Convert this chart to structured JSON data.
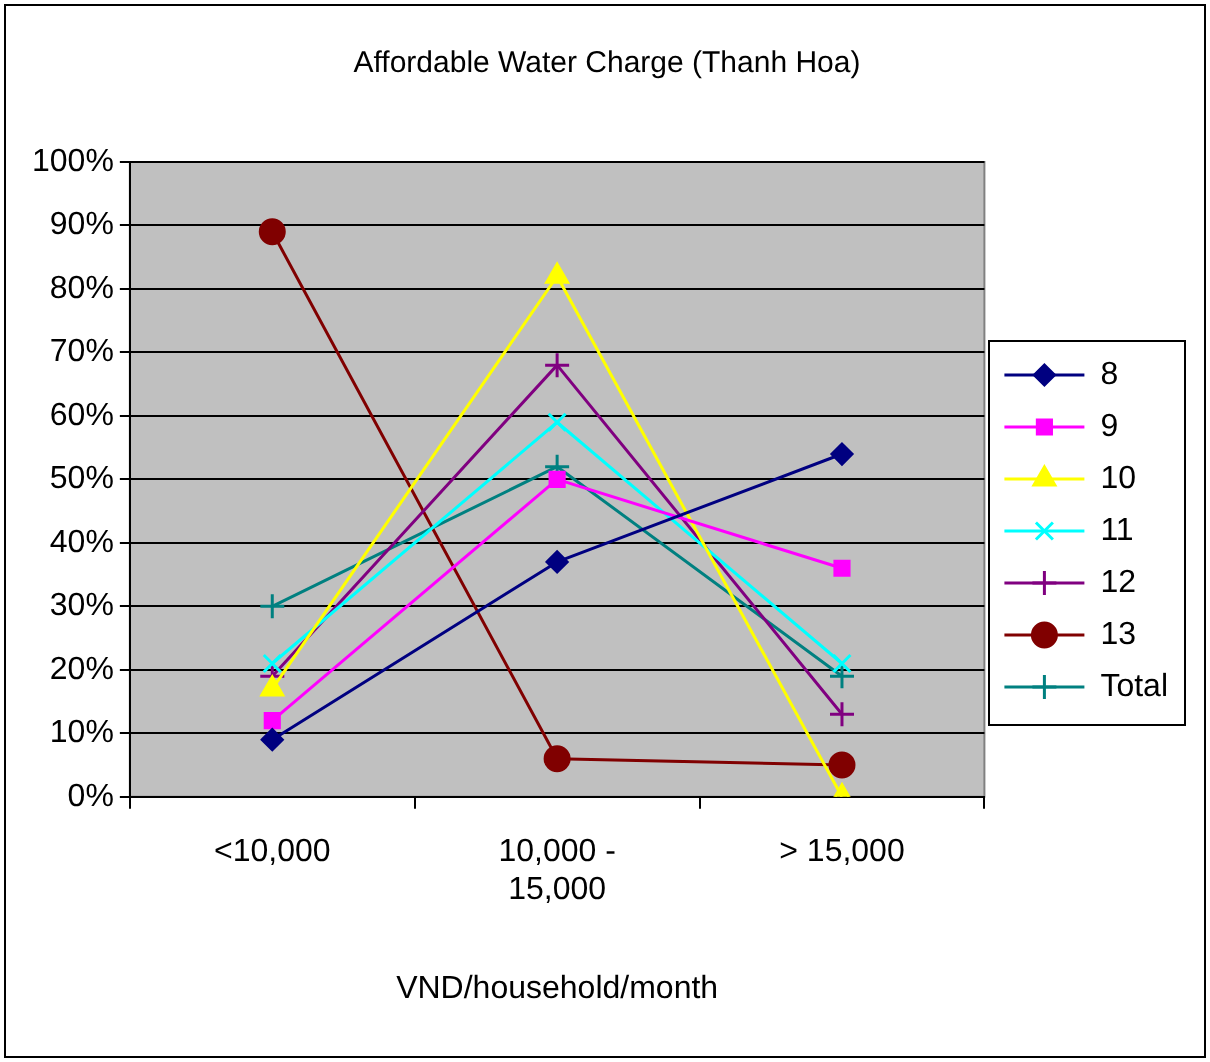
{
  "chart_data": {
    "type": "line",
    "title": "Affordable Water Charge (Thanh Hoa)",
    "xlabel": "VND/household/month",
    "categories": [
      "<10,000",
      "10,000 - 15,000",
      "> 15,000"
    ],
    "series": [
      {
        "name": "8",
        "color": "#000080",
        "marker": "diamond",
        "values": [
          9,
          37,
          54
        ]
      },
      {
        "name": "9",
        "color": "#ff00ff",
        "marker": "square",
        "values": [
          12,
          50,
          36
        ]
      },
      {
        "name": "10",
        "color": "#ffff00",
        "marker": "triangle",
        "values": [
          17,
          82,
          0
        ]
      },
      {
        "name": "11",
        "color": "#00ffff",
        "marker": "x",
        "values": [
          21,
          59,
          21
        ]
      },
      {
        "name": "12",
        "color": "#800080",
        "marker": "cross",
        "values": [
          19,
          68,
          13
        ]
      },
      {
        "name": "13",
        "color": "#800000",
        "marker": "circle",
        "values": [
          89,
          6,
          5
        ]
      },
      {
        "name": "Total",
        "color": "#008080",
        "marker": "cross",
        "values": [
          30,
          52,
          19
        ]
      }
    ],
    "ylim": [
      0,
      100
    ],
    "yticks": [
      {
        "value": 0,
        "label": "0%"
      },
      {
        "value": 10,
        "label": "10%"
      },
      {
        "value": 20,
        "label": "20%"
      },
      {
        "value": 30,
        "label": "30%"
      },
      {
        "value": 40,
        "label": "40%"
      },
      {
        "value": 50,
        "label": "50%"
      },
      {
        "value": 60,
        "label": "60%"
      },
      {
        "value": 70,
        "label": "70%"
      },
      {
        "value": 80,
        "label": "80%"
      },
      {
        "value": 90,
        "label": "90%"
      },
      {
        "value": 100,
        "label": "100%"
      }
    ],
    "grid": "y",
    "legend": "right"
  }
}
